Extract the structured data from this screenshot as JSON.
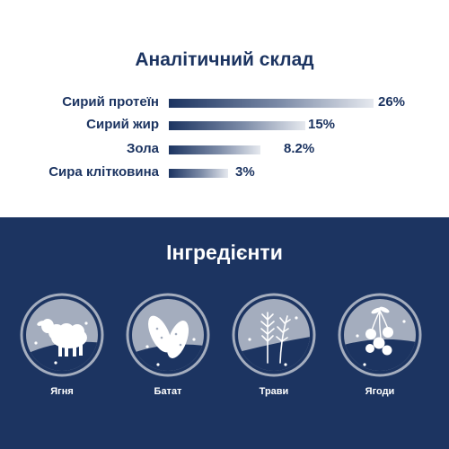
{
  "analysis": {
    "title": "Аналітичний склад",
    "items": [
      {
        "label": "Сирий протеїн",
        "value_text": "26%",
        "value": 26
      },
      {
        "label": "Сирий жир",
        "value_text": "15%",
        "value": 15
      },
      {
        "label": "Зола",
        "value_text": "8.2%",
        "value": 8.2
      },
      {
        "label": "Сира клітковина",
        "value_text": "3%",
        "value": 3
      }
    ]
  },
  "ingredients": {
    "title": "Інгредієнти",
    "items": [
      {
        "label": "Ягня",
        "icon": "lamb-icon"
      },
      {
        "label": "Батат",
        "icon": "sweet-potato-icon"
      },
      {
        "label": "Трави",
        "icon": "herbs-icon"
      },
      {
        "label": "Ягоди",
        "icon": "berries-icon"
      }
    ]
  },
  "colors": {
    "navy": "#1c3461",
    "white": "#ffffff",
    "circle_fill": "#a4adbe"
  }
}
